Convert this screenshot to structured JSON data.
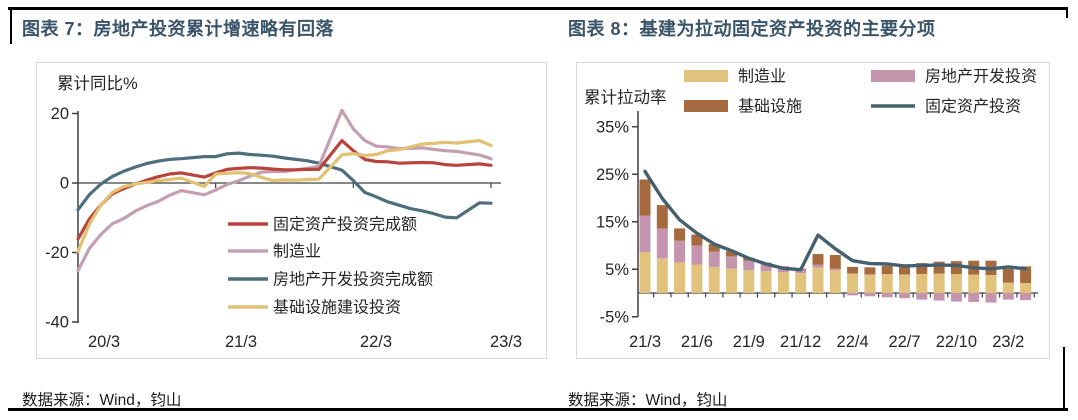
{
  "panels": {
    "left": {
      "title": "图表 7：房地产投资累计增速略有回落",
      "source": "数据来源：Wind，钧山"
    },
    "right": {
      "title": "图表 8：基建为拉动固定资产投资的主要分项",
      "source": "数据来源：Wind，钧山"
    }
  },
  "colors": {
    "title": "#3a5469",
    "axis": "#404040",
    "frame": "#d9d9d9",
    "fai_line": "#b9433d",
    "manufacturing_line": "#c49fb1",
    "realestate_line": "#4e6e7d",
    "infrastructure_line": "#e2c074",
    "manufacturing_bar": "#e2c37e",
    "realestate_bar": "#c495ad",
    "infrastructure_bar": "#a56a3d",
    "fai_dark_line": "#44606f"
  },
  "chart_data": [
    {
      "type": "line",
      "title": "房地产投资累计增速略有回落",
      "ylabel": "累计同比%",
      "ylim": [
        -40,
        20
      ],
      "yticks": [
        20,
        0,
        -20,
        -40
      ],
      "xtick_labels": [
        "20/3",
        "21/3",
        "22/3",
        "23/3"
      ],
      "xtick_months": [
        0,
        12,
        24,
        36
      ],
      "grid": false,
      "legend_position": "inside lower right",
      "x_months": [
        0,
        1,
        2,
        3,
        4,
        5,
        6,
        7,
        8,
        9,
        11,
        12,
        13,
        14,
        15,
        16,
        17,
        18,
        19,
        20,
        21,
        23,
        24,
        25,
        26,
        27,
        28,
        29,
        30,
        31,
        32,
        33,
        35,
        36
      ],
      "x_month_names": [
        "20/3",
        "20/4",
        "20/5",
        "20/6",
        "20/7",
        "20/8",
        "20/9",
        "20/10",
        "20/11",
        "20/12",
        "21/2",
        "21/3",
        "21/4",
        "21/5",
        "21/6",
        "21/7",
        "21/8",
        "21/9",
        "21/10",
        "21/11",
        "21/12",
        "22/2",
        "22/3",
        "22/4",
        "22/5",
        "22/6",
        "22/7",
        "22/8",
        "22/9",
        "22/10",
        "22/11",
        "22/12",
        "23/2",
        "23/3"
      ],
      "series": [
        {
          "name": "固定资产投资完成额",
          "color_key": "fai_line",
          "values": [
            -16.1,
            -10.3,
            -6.3,
            -3.1,
            -1.6,
            -0.3,
            0.8,
            1.8,
            2.6,
            2.9,
            1.7,
            2.9,
            3.9,
            4.2,
            4.4,
            4.3,
            4.0,
            3.8,
            3.8,
            3.9,
            3.9,
            12.2,
            9.3,
            6.8,
            6.2,
            6.1,
            5.7,
            5.8,
            5.9,
            5.8,
            5.3,
            5.1,
            5.5,
            5.1
          ]
        },
        {
          "name": "制造业",
          "color_key": "manufacturing_line",
          "values": [
            -25.2,
            -18.8,
            -14.8,
            -11.7,
            -10.2,
            -8.1,
            -6.5,
            -5.3,
            -3.5,
            -2.2,
            -3.4,
            -2.0,
            -0.4,
            0.6,
            2.0,
            3.1,
            3.3,
            3.3,
            3.8,
            4.2,
            4.8,
            20.9,
            15.6,
            12.2,
            10.6,
            10.4,
            9.9,
            10.0,
            10.1,
            9.7,
            9.3,
            9.1,
            8.1,
            7.0
          ]
        },
        {
          "name": "房地产开发投资完成额",
          "color_key": "realestate_line",
          "values": [
            -7.7,
            -3.3,
            -0.3,
            1.9,
            3.4,
            4.6,
            5.6,
            6.3,
            6.8,
            7.0,
            7.6,
            7.6,
            8.4,
            8.6,
            8.2,
            8.0,
            7.7,
            7.2,
            6.8,
            6.4,
            5.7,
            3.7,
            0.7,
            -2.7,
            -4.0,
            -5.4,
            -6.4,
            -7.4,
            -8.0,
            -8.8,
            -9.8,
            -10.0,
            -5.7,
            -5.8
          ]
        },
        {
          "name": "基础设施建设投资",
          "color_key": "infrastructure_line",
          "values": [
            -19.7,
            -11.8,
            -6.3,
            -2.7,
            -1.0,
            -0.3,
            0.2,
            0.7,
            1.0,
            1.4,
            -1.0,
            2.6,
            2.8,
            3.0,
            2.7,
            1.6,
            0.7,
            0.9,
            0.8,
            1.0,
            1.1,
            8.1,
            8.5,
            7.9,
            8.2,
            9.3,
            9.6,
            10.4,
            11.2,
            11.4,
            11.7,
            11.5,
            12.2,
            10.8
          ]
        }
      ]
    },
    {
      "type": "bar",
      "subtype": "stacked bars + line",
      "title": "基建为拉动固定资产投资的主要分项",
      "ylabel": "累计拉动率",
      "ylim": [
        -5,
        35
      ],
      "yticks_percent": [
        35,
        25,
        15,
        5,
        -5
      ],
      "grid": false,
      "legend_position": "top",
      "categories": [
        "21/3",
        "21/4",
        "21/5",
        "21/6",
        "21/7",
        "21/8",
        "21/9",
        "21/10",
        "21/11",
        "21/12",
        "22/2",
        "22/3",
        "22/4",
        "22/5",
        "22/6",
        "22/7",
        "22/8",
        "22/9",
        "22/10",
        "22/11",
        "22/12",
        "23/2",
        "23/3"
      ],
      "visible_xtick_labels": [
        "21/3",
        "21/6",
        "21/9",
        "21/12",
        "22/4",
        "22/7",
        "22/10",
        "23/2"
      ],
      "visible_xtick_indices": [
        0,
        3,
        6,
        9,
        12,
        15,
        18,
        21
      ],
      "bar_series": [
        {
          "name": "制造业",
          "color_key": "manufacturing_bar",
          "values": [
            8.6,
            7.3,
            6.4,
            6.0,
            5.5,
            5.1,
            4.8,
            4.6,
            4.4,
            4.2,
            5.4,
            4.8,
            4.1,
            3.9,
            4.0,
            3.9,
            4.0,
            4.1,
            4.0,
            3.9,
            3.8,
            2.2,
            2.1
          ]
        },
        {
          "name": "房地产开发投资",
          "color_key": "realestate_bar",
          "values": [
            7.7,
            6.3,
            4.6,
            4.0,
            3.2,
            2.6,
            2.0,
            1.5,
            1.0,
            0.7,
            0.6,
            0.3,
            -0.5,
            -0.7,
            -0.9,
            -1.1,
            -1.4,
            -1.6,
            -1.8,
            -1.9,
            -2.0,
            -1.4,
            -1.5
          ]
        },
        {
          "name": "基础设施",
          "color_key": "infrastructure_bar",
          "values": [
            7.6,
            4.9,
            2.6,
            2.3,
            1.6,
            1.1,
            0.6,
            0.3,
            0.2,
            0.2,
            2.2,
            2.9,
            1.4,
            1.5,
            1.7,
            1.9,
            2.3,
            2.5,
            2.7,
            2.9,
            3.0,
            2.9,
            3.5
          ]
        }
      ],
      "line_series": {
        "name": "固定资产投资",
        "color_key": "fai_dark_line",
        "values": [
          25.6,
          19.9,
          15.4,
          12.6,
          10.3,
          8.9,
          7.3,
          6.1,
          5.2,
          4.9,
          12.2,
          9.3,
          6.8,
          6.2,
          6.1,
          5.7,
          5.8,
          5.9,
          5.8,
          5.3,
          5.1,
          5.5,
          5.1
        ]
      }
    }
  ]
}
